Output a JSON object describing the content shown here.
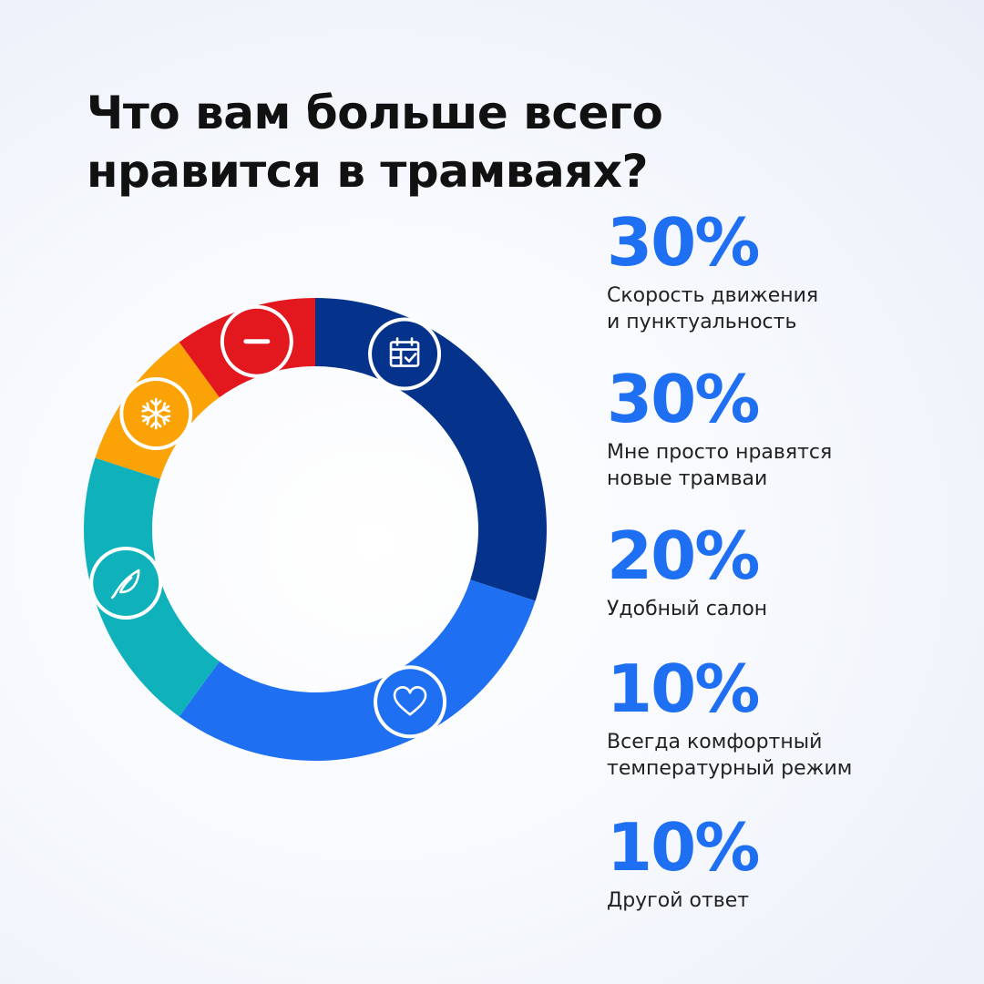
{
  "title": {
    "lines": [
      "Что вам больше всего",
      "нравится в трамваях?"
    ]
  },
  "chart_data": {
    "type": "pie",
    "variant": "donut",
    "start_angle_deg": 0,
    "direction": "clockwise",
    "slices": [
      {
        "value": 30,
        "value_label": "30%",
        "label_lines": [
          "Скорость движения",
          "и пунктуальность"
        ],
        "color": "#05338c",
        "icon": "calendar-check-icon"
      },
      {
        "value": 30,
        "value_label": "30%",
        "label_lines": [
          "Мне просто нравятся",
          "новые трамваи"
        ],
        "color": "#1f6ff2",
        "icon": "heart-icon"
      },
      {
        "value": 20,
        "value_label": "20%",
        "label_lines": [
          "Удобный салон"
        ],
        "color": "#0fb1bb",
        "icon": "feather-icon"
      },
      {
        "value": 10,
        "value_label": "10%",
        "label_lines": [
          "Всегда комфортный",
          "температурный режим"
        ],
        "color": "#fba306",
        "icon": "snowflake-icon"
      },
      {
        "value": 10,
        "value_label": "10%",
        "label_lines": [
          "Другой ответ"
        ],
        "color": "#e3181e",
        "icon": "minus-icon"
      }
    ]
  }
}
